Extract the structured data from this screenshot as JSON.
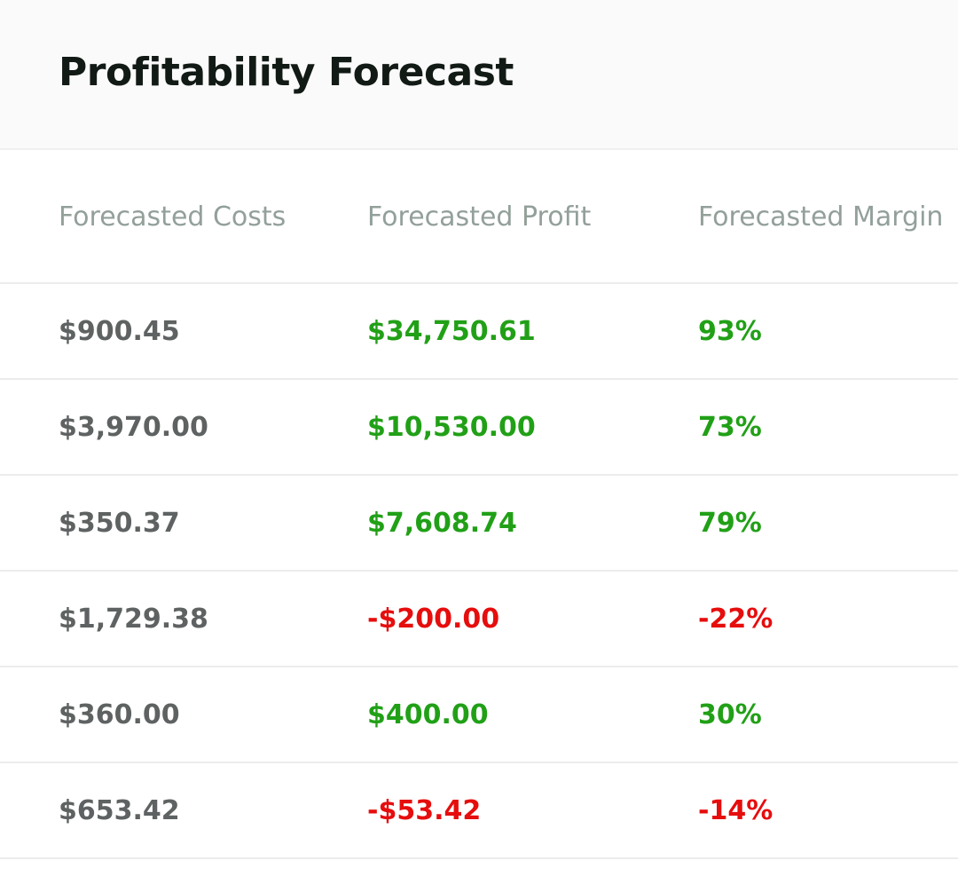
{
  "title": "Profitability Forecast",
  "colors": {
    "positive": "#21a017",
    "negative": "#e60d0d",
    "cost_text": "#5f6262",
    "header_text": "#93a09a"
  },
  "table": {
    "headers": [
      "Forecasted Costs",
      "Forecasted Profit",
      "Forecasted Margin"
    ],
    "rows": [
      {
        "cost": "$900.45",
        "profit": "$34,750.61",
        "margin": "93%",
        "status": "positive"
      },
      {
        "cost": "$3,970.00",
        "profit": "$10,530.00",
        "margin": "73%",
        "status": "positive"
      },
      {
        "cost": "$350.37",
        "profit": "$7,608.74",
        "margin": "79%",
        "status": "positive"
      },
      {
        "cost": "$1,729.38",
        "profit": "-$200.00",
        "margin": "-22%",
        "status": "negative"
      },
      {
        "cost": "$360.00",
        "profit": "$400.00",
        "margin": "30%",
        "status": "positive"
      },
      {
        "cost": "$653.42",
        "profit": "-$53.42",
        "margin": "-14%",
        "status": "negative"
      }
    ]
  }
}
